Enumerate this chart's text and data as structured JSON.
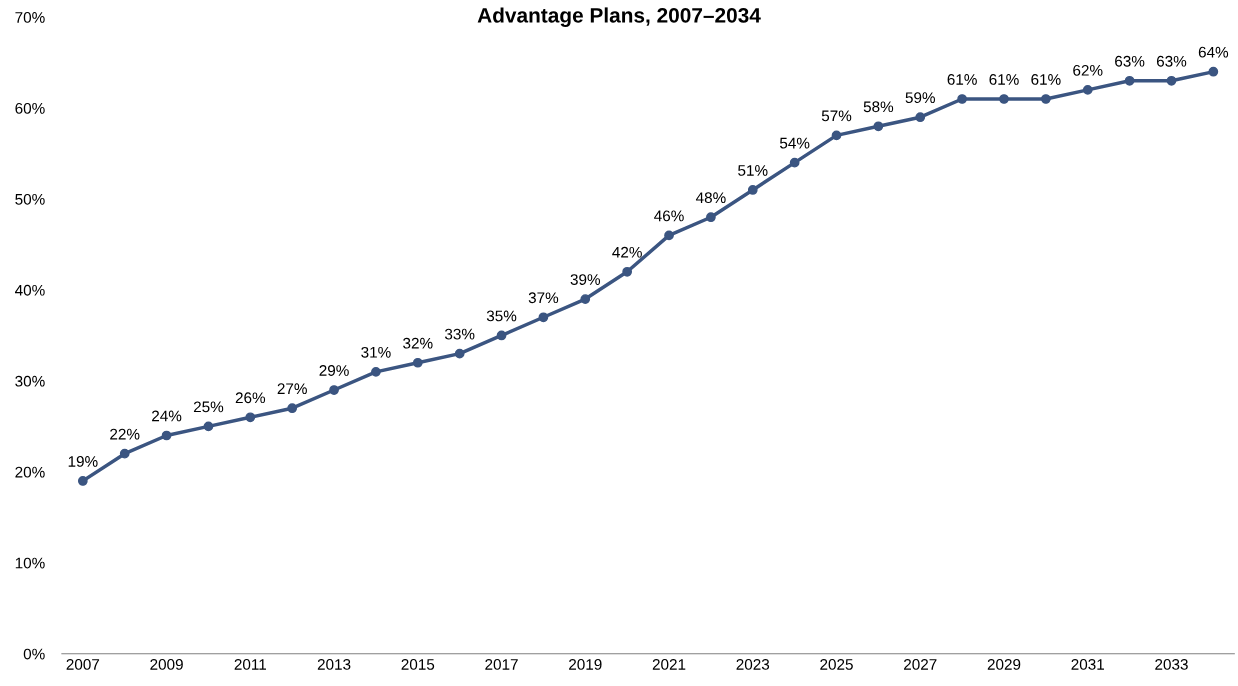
{
  "chart_data": {
    "type": "line",
    "title": "Advantage Plans, 2007–2034",
    "x": [
      2007,
      2008,
      2009,
      2010,
      2011,
      2012,
      2013,
      2014,
      2015,
      2016,
      2017,
      2018,
      2019,
      2020,
      2021,
      2022,
      2023,
      2024,
      2025,
      2026,
      2027,
      2028,
      2029,
      2030,
      2031,
      2032,
      2033,
      2034
    ],
    "series": [
      {
        "color": "#3b5581",
        "values": [
          19,
          22,
          24,
          25,
          26,
          27,
          29,
          31,
          32,
          33,
          35,
          37,
          39,
          42,
          46,
          48,
          51,
          54,
          57,
          58,
          59,
          61,
          61,
          61,
          62,
          63,
          63,
          64
        ],
        "value_labels": [
          "19%",
          "22%",
          "24%",
          "25%",
          "26%",
          "27%",
          "29%",
          "31%",
          "32%",
          "33%",
          "35%",
          "37%",
          "39%",
          "42%",
          "46%",
          "48%",
          "51%",
          "54%",
          "57%",
          "58%",
          "59%",
          "61%",
          "61%",
          "61%",
          "62%",
          "63%",
          "63%",
          "64%"
        ]
      }
    ],
    "xlim": [
      2006.5,
      2034.5
    ],
    "xticks": [
      2007,
      2009,
      2011,
      2013,
      2015,
      2017,
      2019,
      2021,
      2023,
      2025,
      2027,
      2029,
      2031,
      2033
    ],
    "ylim": [
      0,
      70
    ],
    "yticks": [
      {
        "value": 0,
        "label": "0%"
      },
      {
        "value": 10,
        "label": "10%"
      },
      {
        "value": 20,
        "label": "20%"
      },
      {
        "value": 30,
        "label": "30%"
      },
      {
        "value": 40,
        "label": "40%"
      },
      {
        "value": 50,
        "label": "50%"
      },
      {
        "value": 60,
        "label": "60%"
      },
      {
        "value": 70,
        "label": "70%"
      }
    ],
    "grid": false,
    "legend": false,
    "marker": "circle",
    "line_style": "solid"
  }
}
